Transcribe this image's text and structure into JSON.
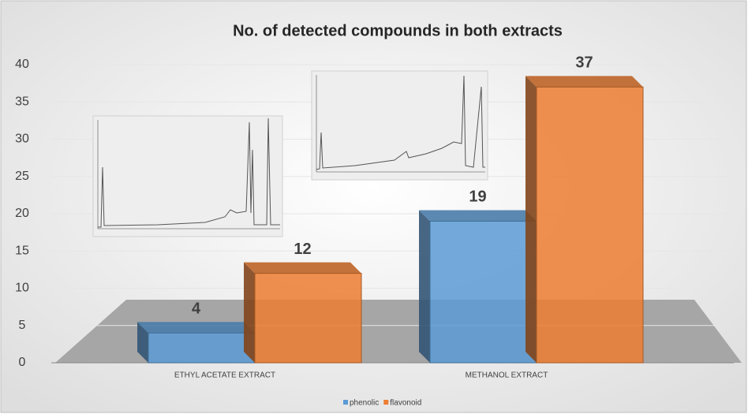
{
  "chart_data": {
    "type": "bar3d",
    "title": "No. of detected compounds in both extracts",
    "categories": [
      "ETHYL ACETATE EXTRACT",
      "METHANOL EXTRACT"
    ],
    "series": [
      {
        "name": "phenolic",
        "color": "#5b9bd5",
        "values": [
          4,
          19
        ]
      },
      {
        "name": "flavonoid",
        "color": "#ed7d31",
        "values": [
          12,
          37
        ]
      }
    ],
    "ylim": [
      0,
      40
    ],
    "yticks": [
      0,
      5,
      10,
      15,
      20,
      25,
      30,
      35,
      40
    ],
    "grid": true,
    "legend": "bottom"
  }
}
